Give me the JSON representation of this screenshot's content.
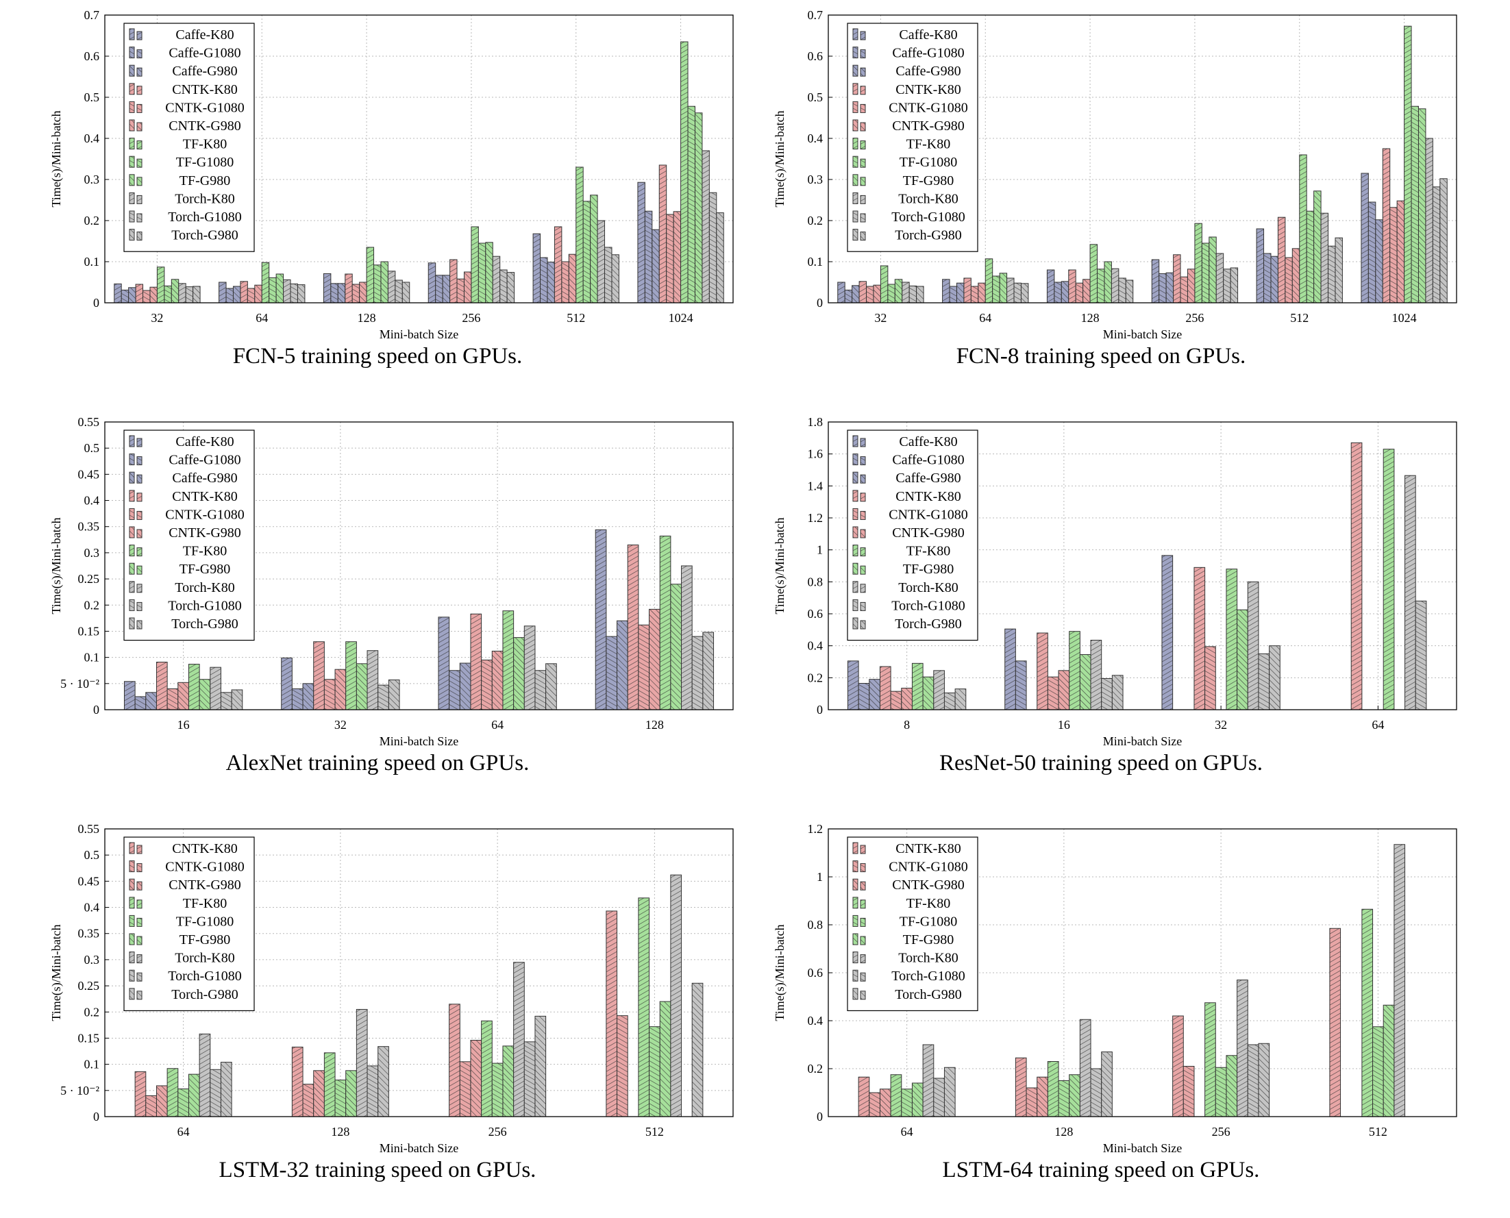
{
  "page": {
    "xlabel": "Mini-batch Size",
    "ylabel": "Time(s)/Mini-batch"
  },
  "series_colors": {
    "Caffe-K80": "#9fa4c4",
    "Caffe-G1080": "#9fa4c4",
    "Caffe-G980": "#9fa4c4",
    "CNTK-K80": "#e8a6a6",
    "CNTK-G1080": "#e8a6a6",
    "CNTK-G980": "#e8a6a6",
    "TF-K80": "#a6e09b",
    "TF-G1080": "#a6e09b",
    "TF-G980": "#a6e09b",
    "Torch-K80": "#c4c4c4",
    "Torch-G1080": "#c4c4c4",
    "Torch-G980": "#c4c4c4"
  },
  "chart_data": [
    {
      "type": "bar",
      "caption": "FCN-5 training speed on GPUs.",
      "xlabel": "Mini-batch Size",
      "ylabel": "Time(s)/Mini-batch",
      "ylim": [
        0,
        0.7
      ],
      "yticks": [
        {
          "v": 0,
          "label": "0"
        },
        {
          "v": 0.1,
          "label": "0.1"
        },
        {
          "v": 0.2,
          "label": "0.2"
        },
        {
          "v": 0.3,
          "label": "0.3"
        },
        {
          "v": 0.4,
          "label": "0.4"
        },
        {
          "v": 0.5,
          "label": "0.5"
        },
        {
          "v": 0.6,
          "label": "0.6"
        },
        {
          "v": 0.7,
          "label": "0.7"
        }
      ],
      "categories": [
        "32",
        "64",
        "128",
        "256",
        "512",
        "1024"
      ],
      "legend": "top-left",
      "series": [
        {
          "name": "Caffe-K80",
          "values": [
            0.046,
            0.05,
            0.071,
            0.097,
            0.168,
            0.293
          ]
        },
        {
          "name": "Caffe-G1080",
          "values": [
            0.031,
            0.035,
            0.047,
            0.067,
            0.11,
            0.223
          ]
        },
        {
          "name": "Caffe-G980",
          "values": [
            0.037,
            0.04,
            0.047,
            0.067,
            0.099,
            0.178
          ]
        },
        {
          "name": "CNTK-K80",
          "values": [
            0.045,
            0.052,
            0.07,
            0.105,
            0.185,
            0.335
          ]
        },
        {
          "name": "CNTK-G1080",
          "values": [
            0.03,
            0.035,
            0.045,
            0.058,
            0.1,
            0.215
          ]
        },
        {
          "name": "CNTK-G980",
          "values": [
            0.038,
            0.043,
            0.05,
            0.075,
            0.118,
            0.222
          ]
        },
        {
          "name": "TF-K80",
          "values": [
            0.087,
            0.098,
            0.135,
            0.185,
            0.33,
            0.635
          ]
        },
        {
          "name": "TF-G1080",
          "values": [
            0.041,
            0.061,
            0.092,
            0.145,
            0.247,
            0.478
          ]
        },
        {
          "name": "TF-G980",
          "values": [
            0.057,
            0.07,
            0.1,
            0.147,
            0.262,
            0.462
          ]
        },
        {
          "name": "Torch-K80",
          "values": [
            0.047,
            0.056,
            0.077,
            0.113,
            0.2,
            0.37
          ]
        },
        {
          "name": "Torch-G1080",
          "values": [
            0.039,
            0.046,
            0.055,
            0.08,
            0.135,
            0.268
          ]
        },
        {
          "name": "Torch-G980",
          "values": [
            0.04,
            0.044,
            0.05,
            0.074,
            0.117,
            0.219
          ]
        }
      ]
    },
    {
      "type": "bar",
      "caption": "FCN-8 training speed on GPUs.",
      "xlabel": "Mini-batch Size",
      "ylabel": "Time(s)/Mini-batch",
      "ylim": [
        0,
        0.7
      ],
      "yticks": [
        {
          "v": 0,
          "label": "0"
        },
        {
          "v": 0.1,
          "label": "0.1"
        },
        {
          "v": 0.2,
          "label": "0.2"
        },
        {
          "v": 0.3,
          "label": "0.3"
        },
        {
          "v": 0.4,
          "label": "0.4"
        },
        {
          "v": 0.5,
          "label": "0.5"
        },
        {
          "v": 0.6,
          "label": "0.6"
        },
        {
          "v": 0.7,
          "label": "0.7"
        }
      ],
      "categories": [
        "32",
        "64",
        "128",
        "256",
        "512",
        "1024"
      ],
      "legend": "top-left",
      "series": [
        {
          "name": "Caffe-K80",
          "values": [
            0.05,
            0.057,
            0.08,
            0.105,
            0.18,
            0.315
          ]
        },
        {
          "name": "Caffe-G1080",
          "values": [
            0.031,
            0.04,
            0.05,
            0.071,
            0.12,
            0.245
          ]
        },
        {
          "name": "Caffe-G980",
          "values": [
            0.042,
            0.048,
            0.052,
            0.073,
            0.113,
            0.202
          ]
        },
        {
          "name": "CNTK-K80",
          "values": [
            0.052,
            0.06,
            0.08,
            0.117,
            0.208,
            0.375
          ]
        },
        {
          "name": "CNTK-G1080",
          "values": [
            0.04,
            0.04,
            0.048,
            0.063,
            0.11,
            0.232
          ]
        },
        {
          "name": "CNTK-G980",
          "values": [
            0.043,
            0.048,
            0.057,
            0.082,
            0.132,
            0.248
          ]
        },
        {
          "name": "TF-K80",
          "values": [
            0.09,
            0.107,
            0.142,
            0.193,
            0.36,
            0.673
          ]
        },
        {
          "name": "TF-G1080",
          "values": [
            0.045,
            0.065,
            0.082,
            0.145,
            0.223,
            0.478
          ]
        },
        {
          "name": "TF-G980",
          "values": [
            0.057,
            0.072,
            0.1,
            0.16,
            0.272,
            0.472
          ]
        },
        {
          "name": "Torch-K80",
          "values": [
            0.05,
            0.06,
            0.083,
            0.12,
            0.218,
            0.4
          ]
        },
        {
          "name": "Torch-G1080",
          "values": [
            0.041,
            0.048,
            0.06,
            0.082,
            0.138,
            0.282
          ]
        },
        {
          "name": "Torch-G980",
          "values": [
            0.04,
            0.047,
            0.055,
            0.085,
            0.158,
            0.302
          ]
        }
      ]
    },
    {
      "type": "bar",
      "caption": "AlexNet training speed on GPUs.",
      "xlabel": "Mini-batch Size",
      "ylabel": "Time(s)/Mini-batch",
      "ylim": [
        0,
        0.55
      ],
      "yticks": [
        {
          "v": 0,
          "label": "0"
        },
        {
          "v": 0.05,
          "label": "5 · 10⁻²"
        },
        {
          "v": 0.1,
          "label": "0.1"
        },
        {
          "v": 0.15,
          "label": "0.15"
        },
        {
          "v": 0.2,
          "label": "0.2"
        },
        {
          "v": 0.25,
          "label": "0.25"
        },
        {
          "v": 0.3,
          "label": "0.3"
        },
        {
          "v": 0.35,
          "label": "0.35"
        },
        {
          "v": 0.4,
          "label": "0.4"
        },
        {
          "v": 0.45,
          "label": "0.45"
        },
        {
          "v": 0.5,
          "label": "0.5"
        },
        {
          "v": 0.55,
          "label": "0.55"
        }
      ],
      "categories": [
        "16",
        "32",
        "64",
        "128"
      ],
      "legend": "top-left",
      "series": [
        {
          "name": "Caffe-K80",
          "values": [
            0.054,
            0.099,
            0.177,
            0.344
          ]
        },
        {
          "name": "Caffe-G1080",
          "values": [
            0.025,
            0.04,
            0.075,
            0.14
          ]
        },
        {
          "name": "Caffe-G980",
          "values": [
            0.033,
            0.05,
            0.089,
            0.17
          ]
        },
        {
          "name": "CNTK-K80",
          "values": [
            0.091,
            0.13,
            0.183,
            0.315
          ]
        },
        {
          "name": "CNTK-G1080",
          "values": [
            0.04,
            0.058,
            0.095,
            0.162
          ]
        },
        {
          "name": "CNTK-G980",
          "values": [
            0.052,
            0.077,
            0.112,
            0.192
          ]
        },
        {
          "name": "TF-K80",
          "values": [
            0.087,
            0.13,
            0.189,
            0.332
          ]
        },
        {
          "name": "TF-G980",
          "values": [
            0.058,
            0.088,
            0.138,
            0.24
          ]
        },
        {
          "name": "Torch-K80",
          "values": [
            0.081,
            0.113,
            0.16,
            0.275
          ]
        },
        {
          "name": "Torch-G1080",
          "values": [
            0.033,
            0.047,
            0.075,
            0.14
          ]
        },
        {
          "name": "Torch-G980",
          "values": [
            0.038,
            0.057,
            0.088,
            0.148
          ]
        }
      ]
    },
    {
      "type": "bar",
      "caption": "ResNet-50 training speed on GPUs.",
      "xlabel": "Mini-batch Size",
      "ylabel": "Time(s)/Mini-batch",
      "ylim": [
        0,
        1.8
      ],
      "yticks": [
        {
          "v": 0,
          "label": "0"
        },
        {
          "v": 0.2,
          "label": "0.2"
        },
        {
          "v": 0.4,
          "label": "0.4"
        },
        {
          "v": 0.6,
          "label": "0.6"
        },
        {
          "v": 0.8,
          "label": "0.8"
        },
        {
          "v": 1.0,
          "label": "1"
        },
        {
          "v": 1.2,
          "label": "1.2"
        },
        {
          "v": 1.4,
          "label": "1.4"
        },
        {
          "v": 1.6,
          "label": "1.6"
        },
        {
          "v": 1.8,
          "label": "1.8"
        }
      ],
      "categories": [
        "8",
        "16",
        "32",
        "64"
      ],
      "legend": "top-left",
      "series": [
        {
          "name": "Caffe-K80",
          "values": [
            0.305,
            0.505,
            0.965,
            0
          ]
        },
        {
          "name": "Caffe-G1080",
          "values": [
            0.165,
            0.305,
            0,
            0
          ]
        },
        {
          "name": "Caffe-G980",
          "values": [
            0.19,
            0,
            0,
            0
          ]
        },
        {
          "name": "CNTK-K80",
          "values": [
            0.27,
            0.48,
            0.89,
            1.67
          ]
        },
        {
          "name": "CNTK-G1080",
          "values": [
            0.115,
            0.205,
            0.395,
            0
          ]
        },
        {
          "name": "CNTK-G980",
          "values": [
            0.135,
            0.245,
            0,
            0
          ]
        },
        {
          "name": "TF-K80",
          "values": [
            0.29,
            0.49,
            0.88,
            1.63
          ]
        },
        {
          "name": "TF-G980",
          "values": [
            0.205,
            0.345,
            0.625,
            0
          ]
        },
        {
          "name": "Torch-K80",
          "values": [
            0.245,
            0.435,
            0.8,
            1.465
          ]
        },
        {
          "name": "Torch-G1080",
          "values": [
            0.105,
            0.195,
            0.35,
            0.68
          ]
        },
        {
          "name": "Torch-G980",
          "values": [
            0.13,
            0.215,
            0.4,
            0
          ]
        }
      ]
    },
    {
      "type": "bar",
      "caption": "LSTM-32 training speed on GPUs.",
      "xlabel": "Mini-batch Size",
      "ylabel": "Time(s)/Mini-batch",
      "ylim": [
        0,
        0.55
      ],
      "yticks": [
        {
          "v": 0,
          "label": "0"
        },
        {
          "v": 0.05,
          "label": "5 · 10⁻²"
        },
        {
          "v": 0.1,
          "label": "0.1"
        },
        {
          "v": 0.15,
          "label": "0.15"
        },
        {
          "v": 0.2,
          "label": "0.2"
        },
        {
          "v": 0.25,
          "label": "0.25"
        },
        {
          "v": 0.3,
          "label": "0.3"
        },
        {
          "v": 0.35,
          "label": "0.35"
        },
        {
          "v": 0.4,
          "label": "0.4"
        },
        {
          "v": 0.45,
          "label": "0.45"
        },
        {
          "v": 0.5,
          "label": "0.5"
        },
        {
          "v": 0.55,
          "label": "0.55"
        }
      ],
      "categories": [
        "64",
        "128",
        "256",
        "512"
      ],
      "legend": "top-left",
      "series": [
        {
          "name": "CNTK-K80",
          "values": [
            0.086,
            0.133,
            0.215,
            0.393
          ]
        },
        {
          "name": "CNTK-G1080",
          "values": [
            0.04,
            0.062,
            0.105,
            0.193
          ]
        },
        {
          "name": "CNTK-G980",
          "values": [
            0.059,
            0.088,
            0.146,
            0
          ]
        },
        {
          "name": "TF-K80",
          "values": [
            0.092,
            0.122,
            0.183,
            0.418
          ]
        },
        {
          "name": "TF-G1080",
          "values": [
            0.053,
            0.07,
            0.102,
            0.172
          ]
        },
        {
          "name": "TF-G980",
          "values": [
            0.081,
            0.088,
            0.135,
            0.22
          ]
        },
        {
          "name": "Torch-K80",
          "values": [
            0.158,
            0.205,
            0.295,
            0.462
          ]
        },
        {
          "name": "Torch-G1080",
          "values": [
            0.09,
            0.097,
            0.143,
            0
          ]
        },
        {
          "name": "Torch-G980",
          "values": [
            0.104,
            0.134,
            0.192,
            0.255
          ]
        }
      ]
    },
    {
      "type": "bar",
      "caption": "LSTM-64 training speed on GPUs.",
      "xlabel": "Mini-batch Size",
      "ylabel": "Time(s)/Mini-batch",
      "ylim": [
        0,
        1.2
      ],
      "yticks": [
        {
          "v": 0,
          "label": "0"
        },
        {
          "v": 0.2,
          "label": "0.2"
        },
        {
          "v": 0.4,
          "label": "0.4"
        },
        {
          "v": 0.6,
          "label": "0.6"
        },
        {
          "v": 0.8,
          "label": "0.8"
        },
        {
          "v": 1.0,
          "label": "1"
        },
        {
          "v": 1.2,
          "label": "1.2"
        }
      ],
      "categories": [
        "64",
        "128",
        "256",
        "512"
      ],
      "legend": "top-left",
      "series": [
        {
          "name": "CNTK-K80",
          "values": [
            0.165,
            0.245,
            0.42,
            0.785
          ]
        },
        {
          "name": "CNTK-G1080",
          "values": [
            0.1,
            0.12,
            0.21,
            0
          ]
        },
        {
          "name": "CNTK-G980",
          "values": [
            0.115,
            0.165,
            0,
            0
          ]
        },
        {
          "name": "TF-K80",
          "values": [
            0.175,
            0.23,
            0.475,
            0.865
          ]
        },
        {
          "name": "TF-G1080",
          "values": [
            0.115,
            0.15,
            0.205,
            0.375
          ]
        },
        {
          "name": "TF-G980",
          "values": [
            0.14,
            0.175,
            0.255,
            0.465
          ]
        },
        {
          "name": "Torch-K80",
          "values": [
            0.3,
            0.405,
            0.57,
            1.135
          ]
        },
        {
          "name": "Torch-G1080",
          "values": [
            0.16,
            0.2,
            0.3,
            0
          ]
        },
        {
          "name": "Torch-G980",
          "values": [
            0.205,
            0.27,
            0.305,
            0
          ]
        }
      ]
    }
  ]
}
